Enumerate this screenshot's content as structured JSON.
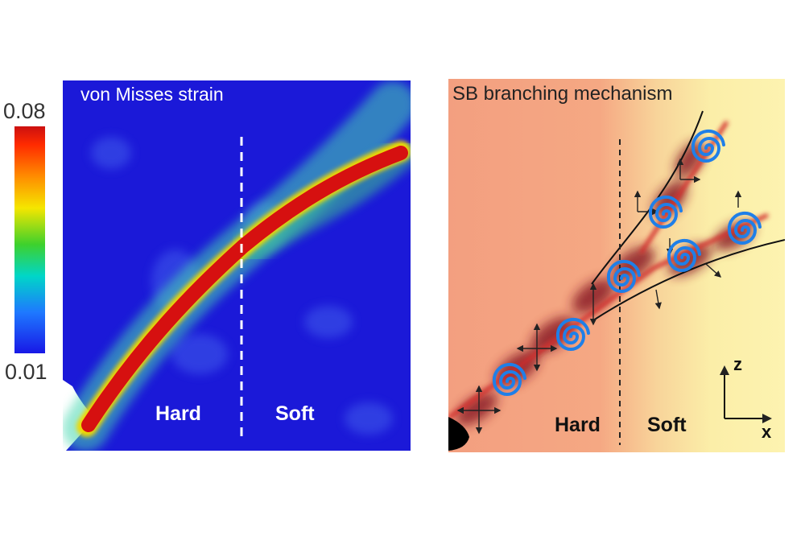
{
  "colorbar": {
    "max_label": "0.08",
    "min_label": "0.01"
  },
  "left_panel": {
    "title": "von Misses strain",
    "hard_label": "Hard",
    "soft_label": "Soft"
  },
  "right_panel": {
    "title": "SB branching mechanism",
    "hard_label": "Hard",
    "soft_label": "Soft",
    "axis_z": "z",
    "axis_x": "x"
  },
  "colors": {
    "field_blue": "#1b19d8",
    "band_red": "#d61010",
    "hard_bg": "#f3a080",
    "soft_bg": "#fbf3a6",
    "spiral_blue": "#1f7fe8"
  }
}
